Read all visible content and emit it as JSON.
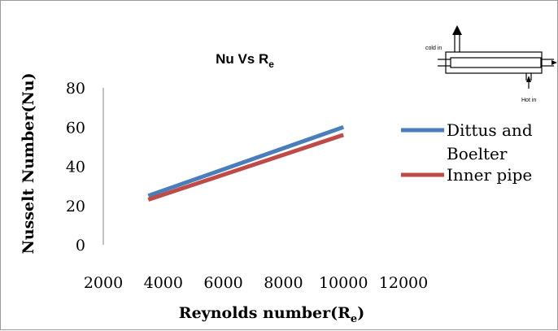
{
  "chart_data": {
    "type": "line",
    "title": "Nu Vs R",
    "title_subscript": "e",
    "xlabel": "Reynolds number(R",
    "xlabel_subscript": "e",
    "xlabel_suffix": ")",
    "ylabel": "Nusselt Number(Nu)",
    "xlim": [
      2000,
      12000
    ],
    "ylim": [
      0,
      80
    ],
    "x_ticks": [
      2000,
      4000,
      6000,
      8000,
      10000,
      12000
    ],
    "y_ticks": [
      0,
      20,
      40,
      60,
      80
    ],
    "grid": false,
    "legend_position": "right",
    "series": [
      {
        "name": "Dittus and Boelter",
        "color": "#4a7ebb",
        "x": [
          3500,
          10000
        ],
        "y": [
          25,
          60
        ]
      },
      {
        "name": "Inner pipe",
        "color": "#be4b48",
        "x": [
          3500,
          10000
        ],
        "y": [
          23,
          56
        ]
      }
    ]
  },
  "legend": {
    "item1_line1": "Dittus and",
    "item1_line2": "Boelter",
    "item2": "Inner pipe"
  },
  "inset_diagram": {
    "cold_label": "cold in",
    "hot_label": "Hot in"
  }
}
